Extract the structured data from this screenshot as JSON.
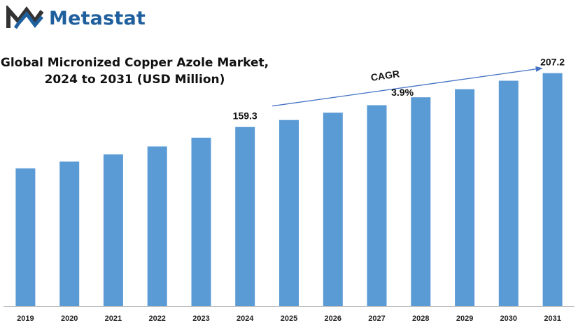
{
  "brand": {
    "name": "Metastat"
  },
  "colors": {
    "bar": "#5b9bd5",
    "arrow": "#4472c4",
    "brand": "#1f5f9e",
    "axis": "#bfbfbf"
  },
  "chart_data": {
    "type": "bar",
    "title_line1": "Global Micronized Copper Azole Market,",
    "title_line2": "2024 to 2031 (USD Million)",
    "categories": [
      "2019",
      "2020",
      "2021",
      "2022",
      "2023",
      "2024",
      "2025",
      "2026",
      "2027",
      "2028",
      "2029",
      "2030",
      "2031"
    ],
    "values": [
      122.5,
      128.5,
      135.0,
      142.0,
      149.8,
      159.3,
      165.5,
      172.0,
      178.7,
      185.7,
      192.9,
      200.4,
      207.2
    ],
    "ylim": [
      0,
      220
    ],
    "grid": false,
    "data_labels": [
      {
        "index": 5,
        "text": "159.3"
      },
      {
        "index": 12,
        "text": "207.2"
      }
    ],
    "annotation": {
      "label": "CAGR",
      "value": "3.9%"
    }
  }
}
